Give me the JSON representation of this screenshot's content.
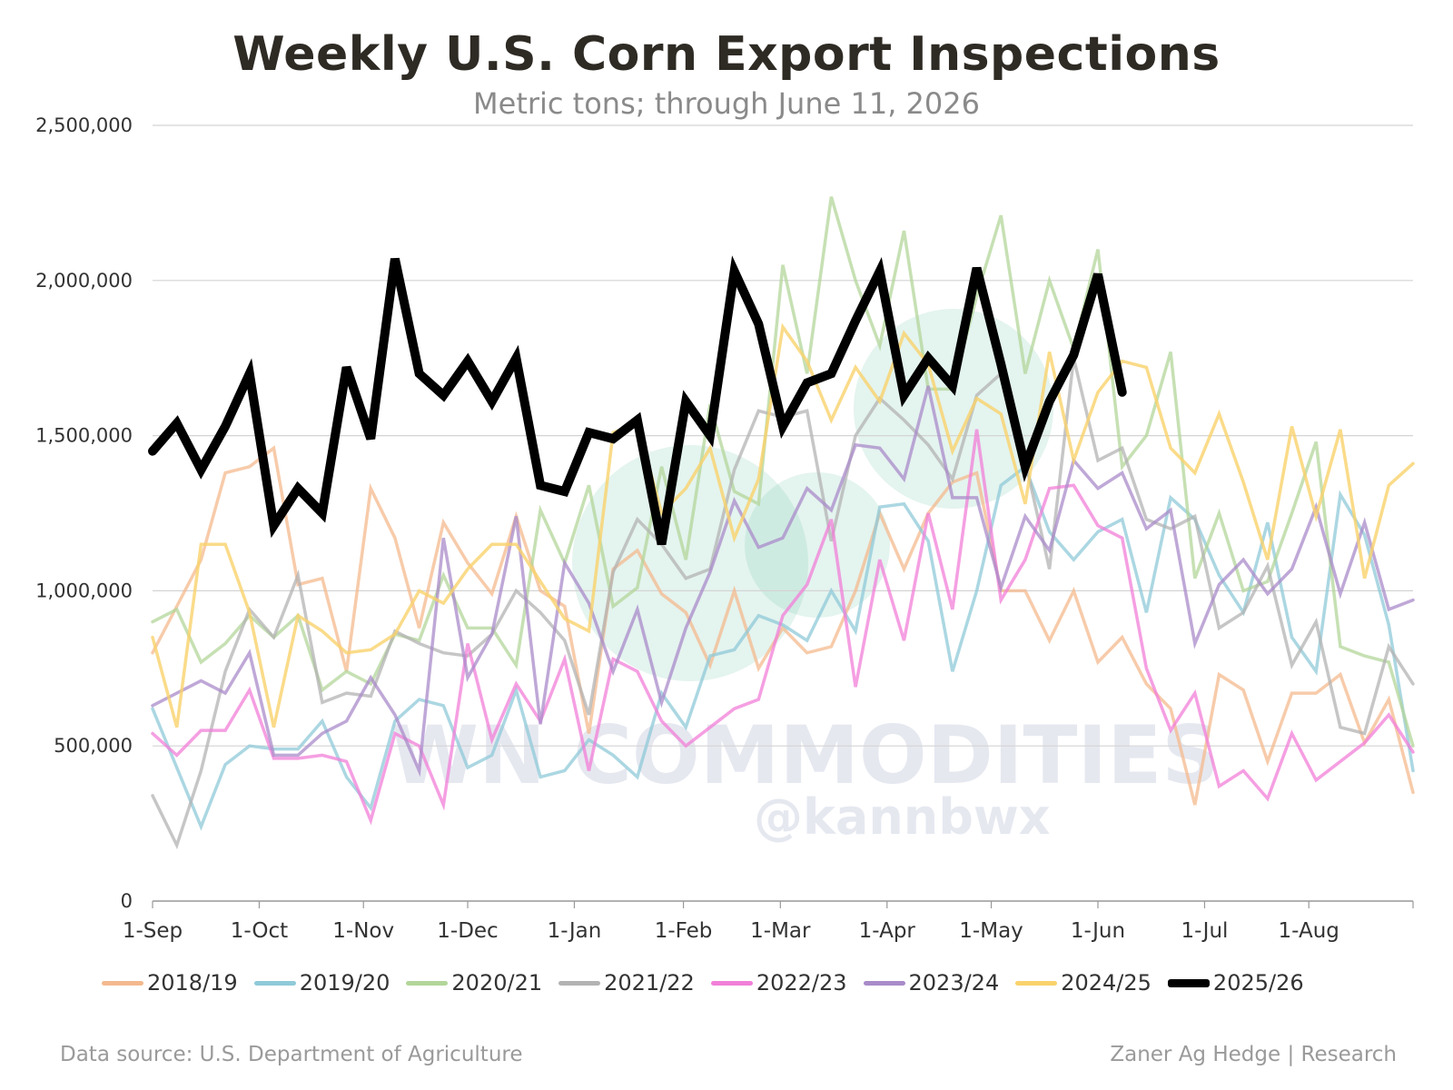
{
  "chart_data": {
    "type": "line",
    "title": "Weekly U.S. Corn Export Inspections",
    "subtitle": "Metric tons; through June 11, 2026",
    "ylim": [
      0,
      2500000
    ],
    "y_ticks": [
      "0",
      "500,000",
      "1,000,000",
      "1,500,000",
      "2,000,000",
      "2,500,000"
    ],
    "y_tick_values": [
      0,
      500000,
      1000000,
      1500000,
      2000000,
      2500000
    ],
    "x_ticks": [
      "1-Sep",
      "1-Oct",
      "1-Nov",
      "1-Dec",
      "1-Jan",
      "1-Feb",
      "1-Mar",
      "1-Apr",
      "1-May",
      "1-Jun",
      "1-Jul",
      "1-Aug"
    ],
    "x_tick_weeks": [
      0,
      4.4,
      8.7,
      13.0,
      17.4,
      21.9,
      25.9,
      30.3,
      34.6,
      39.0,
      43.4,
      47.7
    ],
    "x_unit": "week of marketing year (from 1-Sep)",
    "grid": true,
    "legend_position": "bottom",
    "series": [
      {
        "name": "2018/19",
        "color": "#f4b98e",
        "width": 3.5,
        "opacity": 0.75,
        "values": [
          800000,
          950000,
          1100000,
          1380000,
          1400000,
          1460000,
          1020000,
          1040000,
          740000,
          1330000,
          1170000,
          880000,
          1220000,
          1090000,
          990000,
          1240000,
          1000000,
          950000,
          540000,
          1070000,
          1130000,
          990000,
          930000,
          760000,
          1000000,
          750000,
          880000,
          800000,
          820000,
          1000000,
          1250000,
          1070000,
          1250000,
          1350000,
          1380000,
          1000000,
          1000000,
          840000,
          1000000,
          770000,
          850000,
          700000,
          620000,
          310000,
          730000,
          680000,
          450000,
          670000,
          670000,
          730000,
          510000,
          650000,
          350000
        ]
      },
      {
        "name": "2019/20",
        "color": "#8fcad8",
        "width": 3.5,
        "opacity": 0.75,
        "values": [
          620000,
          430000,
          240000,
          440000,
          500000,
          490000,
          490000,
          580000,
          400000,
          300000,
          580000,
          650000,
          630000,
          430000,
          470000,
          680000,
          400000,
          420000,
          520000,
          470000,
          400000,
          670000,
          560000,
          790000,
          810000,
          920000,
          890000,
          840000,
          1000000,
          870000,
          1270000,
          1280000,
          1160000,
          740000,
          1000000,
          1340000,
          1400000,
          1190000,
          1100000,
          1190000,
          1230000,
          930000,
          1300000,
          1230000,
          1050000,
          930000,
          1220000,
          850000,
          740000,
          1310000,
          1180000,
          890000,
          420000
        ]
      },
      {
        "name": "2020/21",
        "color": "#b3d69a",
        "width": 3.5,
        "opacity": 0.75,
        "values": [
          900000,
          940000,
          770000,
          830000,
          920000,
          850000,
          920000,
          680000,
          740000,
          700000,
          860000,
          840000,
          1050000,
          880000,
          880000,
          760000,
          1260000,
          1090000,
          1340000,
          950000,
          1010000,
          1400000,
          1100000,
          1600000,
          1320000,
          1280000,
          2050000,
          1700000,
          2270000,
          2000000,
          1790000,
          2160000,
          1650000,
          1650000,
          1950000,
          2210000,
          1700000,
          2000000,
          1780000,
          2100000,
          1400000,
          1500000,
          1770000,
          1040000,
          1250000,
          1000000,
          1030000,
          1250000,
          1480000,
          820000,
          790000,
          770000,
          500000
        ]
      },
      {
        "name": "2021/22",
        "color": "#b3b3b3",
        "width": 3.5,
        "opacity": 0.75,
        "values": [
          340000,
          180000,
          420000,
          740000,
          940000,
          850000,
          1050000,
          640000,
          670000,
          660000,
          870000,
          830000,
          800000,
          790000,
          860000,
          1000000,
          930000,
          840000,
          600000,
          1060000,
          1230000,
          1150000,
          1040000,
          1070000,
          1390000,
          1580000,
          1560000,
          1580000,
          1160000,
          1500000,
          1620000,
          1550000,
          1470000,
          1360000,
          1630000,
          1700000,
          1420000,
          1070000,
          1750000,
          1420000,
          1460000,
          1230000,
          1200000,
          1240000,
          880000,
          930000,
          1080000,
          760000,
          900000,
          560000,
          540000,
          820000,
          700000
        ]
      },
      {
        "name": "2022/23",
        "color": "#f17fd8",
        "width": 3.5,
        "opacity": 0.75,
        "values": [
          540000,
          470000,
          550000,
          550000,
          680000,
          460000,
          460000,
          470000,
          450000,
          260000,
          540000,
          500000,
          310000,
          830000,
          520000,
          700000,
          580000,
          780000,
          420000,
          780000,
          740000,
          580000,
          500000,
          560000,
          620000,
          650000,
          920000,
          1020000,
          1230000,
          690000,
          1100000,
          840000,
          1250000,
          940000,
          1520000,
          970000,
          1100000,
          1330000,
          1340000,
          1210000,
          1170000,
          750000,
          550000,
          670000,
          370000,
          420000,
          330000,
          540000,
          390000,
          450000,
          510000,
          600000,
          480000
        ]
      },
      {
        "name": "2023/24",
        "color": "#a98bc9",
        "width": 3.5,
        "opacity": 0.75,
        "values": [
          630000,
          670000,
          710000,
          670000,
          800000,
          470000,
          470000,
          540000,
          580000,
          720000,
          600000,
          420000,
          1170000,
          720000,
          860000,
          1240000,
          570000,
          1090000,
          960000,
          740000,
          940000,
          640000,
          880000,
          1060000,
          1290000,
          1140000,
          1170000,
          1330000,
          1260000,
          1470000,
          1460000,
          1360000,
          1660000,
          1300000,
          1300000,
          1010000,
          1240000,
          1130000,
          1420000,
          1330000,
          1380000,
          1200000,
          1260000,
          830000,
          1020000,
          1100000,
          990000,
          1070000,
          1270000,
          990000,
          1220000,
          940000,
          970000
        ]
      },
      {
        "name": "2024/25",
        "color": "#f9d26b",
        "width": 3.5,
        "opacity": 0.8,
        "values": [
          850000,
          560000,
          1150000,
          1150000,
          930000,
          560000,
          920000,
          870000,
          800000,
          810000,
          860000,
          1000000,
          960000,
          1070000,
          1150000,
          1150000,
          1030000,
          910000,
          870000,
          1510000,
          1540000,
          1250000,
          1330000,
          1460000,
          1170000,
          1360000,
          1850000,
          1740000,
          1550000,
          1720000,
          1610000,
          1830000,
          1730000,
          1450000,
          1620000,
          1570000,
          1280000,
          1770000,
          1420000,
          1640000,
          1740000,
          1720000,
          1460000,
          1380000,
          1570000,
          1350000,
          1100000,
          1530000,
          1240000,
          1520000,
          1040000,
          1340000,
          1410000
        ]
      },
      {
        "name": "2025/26",
        "color": "#000000",
        "width": 10,
        "opacity": 1,
        "values": [
          1450000,
          1540000,
          1390000,
          1530000,
          1700000,
          1210000,
          1330000,
          1250000,
          1720000,
          1490000,
          2070000,
          1700000,
          1630000,
          1740000,
          1610000,
          1750000,
          1340000,
          1320000,
          1510000,
          1490000,
          1550000,
          1150000,
          1610000,
          1500000,
          2030000,
          1860000,
          1530000,
          1670000,
          1700000,
          1870000,
          2030000,
          1630000,
          1750000,
          1660000,
          2040000,
          1730000,
          1400000,
          1610000,
          1760000,
          2020000,
          1640000
        ]
      }
    ]
  },
  "watermark": {
    "line1": "WN COMMODITIES",
    "line2": "@kannbwx"
  },
  "footer": {
    "source": "Data source: U.S. Department of Agriculture",
    "credit": "Zaner Ag Hedge | Research"
  }
}
